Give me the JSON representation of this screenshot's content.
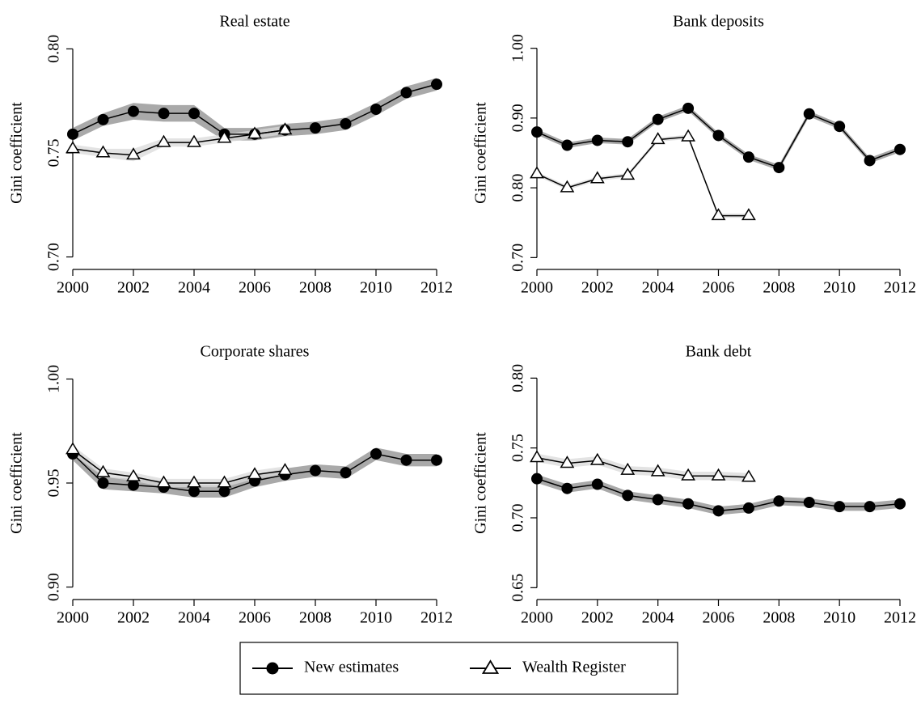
{
  "chart_data": [
    {
      "type": "line",
      "title": "Real estate",
      "ylabel": "Gini coefficient",
      "x": [
        2000,
        2001,
        2002,
        2003,
        2004,
        2005,
        2006,
        2007,
        2008,
        2009,
        2010,
        2011,
        2012
      ],
      "xlim": [
        2000,
        2012
      ],
      "xticks": [
        2000,
        2002,
        2004,
        2006,
        2008,
        2010,
        2012
      ],
      "ylim": [
        0.694,
        0.806
      ],
      "yticks": [
        {
          "value": 0.7,
          "label": "0.70"
        },
        {
          "value": 0.75,
          "label": "0.75"
        },
        {
          "value": 0.8,
          "label": "0.80"
        }
      ],
      "series": [
        {
          "name": "New estimates",
          "color": "#000000",
          "marker": "circle",
          "band_color": "#8c8c8c",
          "values": [
            0.759,
            0.766,
            0.77,
            0.769,
            0.769,
            0.759,
            0.759,
            0.761,
            0.762,
            0.764,
            0.771,
            0.779,
            0.783
          ],
          "lower": [
            0.756,
            0.763,
            0.766,
            0.765,
            0.765,
            0.756,
            0.756,
            0.758,
            0.759,
            0.761,
            0.768,
            0.776,
            0.78
          ],
          "upper": [
            0.762,
            0.769,
            0.774,
            0.773,
            0.773,
            0.762,
            0.762,
            0.764,
            0.765,
            0.767,
            0.774,
            0.782,
            0.786
          ]
        },
        {
          "name": "Wealth Register",
          "color": "#000000",
          "marker": "triangle",
          "band_color": "#d9d9d9",
          "values": [
            0.752,
            0.75,
            0.749,
            0.755,
            0.755,
            0.757,
            0.759,
            0.761,
            null,
            null,
            null,
            null,
            null
          ],
          "lower": [
            0.75,
            0.748,
            0.746,
            0.753,
            0.753,
            0.755,
            0.757,
            0.759,
            null,
            null,
            null,
            null,
            null
          ],
          "upper": [
            0.754,
            0.752,
            0.752,
            0.757,
            0.757,
            0.759,
            0.761,
            0.763,
            null,
            null,
            null,
            null,
            null
          ]
        }
      ]
    },
    {
      "type": "line",
      "title": "Bank deposits",
      "ylabel": "Gini coefficient",
      "x": [
        2000,
        2001,
        2002,
        2003,
        2004,
        2005,
        2006,
        2007,
        2008,
        2009,
        2010,
        2011,
        2012
      ],
      "xlim": [
        2000,
        2012
      ],
      "xticks": [
        2000,
        2002,
        2004,
        2006,
        2008,
        2010,
        2012
      ],
      "ylim": [
        0.683,
        1.017
      ],
      "yticks": [
        {
          "value": 0.7,
          "label": "0.70"
        },
        {
          "value": 0.8,
          "label": "0.80"
        },
        {
          "value": 0.9,
          "label": "0.90"
        },
        {
          "value": 1.0,
          "label": "1.00"
        }
      ],
      "series": [
        {
          "name": "New estimates",
          "color": "#000000",
          "marker": "circle",
          "band_color": "#8c8c8c",
          "values": [
            0.88,
            0.861,
            0.868,
            0.866,
            0.898,
            0.914,
            0.875,
            0.844,
            0.829,
            0.906,
            0.888,
            0.839,
            0.855
          ],
          "lower": [
            0.876,
            0.857,
            0.864,
            0.862,
            0.894,
            0.91,
            0.871,
            0.84,
            0.825,
            0.902,
            0.884,
            0.835,
            0.851
          ],
          "upper": [
            0.884,
            0.865,
            0.872,
            0.87,
            0.902,
            0.918,
            0.879,
            0.848,
            0.833,
            0.91,
            0.892,
            0.843,
            0.859
          ]
        },
        {
          "name": "Wealth Register",
          "color": "#000000",
          "marker": "triangle",
          "band_color": "#d9d9d9",
          "values": [
            0.82,
            0.8,
            0.813,
            0.818,
            0.869,
            0.873,
            0.76,
            0.76,
            null,
            null,
            null,
            null,
            null
          ],
          "lower": [
            0.817,
            0.797,
            0.81,
            0.815,
            0.866,
            0.87,
            0.757,
            0.757,
            null,
            null,
            null,
            null,
            null
          ],
          "upper": [
            0.823,
            0.803,
            0.816,
            0.821,
            0.872,
            0.876,
            0.763,
            0.763,
            null,
            null,
            null,
            null,
            null
          ]
        }
      ]
    },
    {
      "type": "line",
      "title": "Corporate shares",
      "ylabel": "Gini coefficient",
      "x": [
        2000,
        2001,
        2002,
        2003,
        2004,
        2005,
        2006,
        2007,
        2008,
        2009,
        2010,
        2011,
        2012
      ],
      "xlim": [
        2000,
        2012
      ],
      "xticks": [
        2000,
        2002,
        2004,
        2006,
        2008,
        2010,
        2012
      ],
      "ylim": [
        0.894,
        1.006
      ],
      "yticks": [
        {
          "value": 0.9,
          "label": "0.90"
        },
        {
          "value": 0.95,
          "label": "0.95"
        },
        {
          "value": 1.0,
          "label": "1.00"
        }
      ],
      "series": [
        {
          "name": "New estimates",
          "color": "#000000",
          "marker": "circle",
          "band_color": "#8c8c8c",
          "values": [
            0.964,
            0.95,
            0.949,
            0.948,
            0.946,
            0.946,
            0.951,
            0.954,
            0.956,
            0.955,
            0.964,
            0.961,
            0.961
          ],
          "lower": [
            0.961,
            0.947,
            0.946,
            0.945,
            0.943,
            0.943,
            0.948,
            0.951,
            0.953,
            0.952,
            0.961,
            0.958,
            0.958
          ],
          "upper": [
            0.967,
            0.953,
            0.952,
            0.951,
            0.949,
            0.949,
            0.954,
            0.957,
            0.959,
            0.958,
            0.967,
            0.964,
            0.964
          ]
        },
        {
          "name": "Wealth Register",
          "color": "#000000",
          "marker": "triangle",
          "band_color": "#d9d9d9",
          "values": [
            0.966,
            0.955,
            0.953,
            0.95,
            0.95,
            0.95,
            0.954,
            0.956,
            null,
            null,
            null,
            null,
            null
          ],
          "lower": [
            0.964,
            0.953,
            0.951,
            0.948,
            0.948,
            0.948,
            0.952,
            0.954,
            null,
            null,
            null,
            null,
            null
          ],
          "upper": [
            0.968,
            0.957,
            0.955,
            0.952,
            0.952,
            0.952,
            0.956,
            0.958,
            null,
            null,
            null,
            null,
            null
          ]
        }
      ]
    },
    {
      "type": "line",
      "title": "Bank debt",
      "ylabel": "Gini coefficient",
      "x": [
        2000,
        2001,
        2002,
        2003,
        2004,
        2005,
        2006,
        2007,
        2008,
        2009,
        2010,
        2011,
        2012
      ],
      "xlim": [
        2000,
        2012
      ],
      "xticks": [
        2000,
        2002,
        2004,
        2006,
        2008,
        2010,
        2012
      ],
      "ylim": [
        0.6415,
        0.8083
      ],
      "yticks": [
        {
          "value": 0.65,
          "label": "0.65"
        },
        {
          "value": 0.7,
          "label": "0.70"
        },
        {
          "value": 0.75,
          "label": "0.75"
        },
        {
          "value": 0.8,
          "label": "0.80"
        }
      ],
      "series": [
        {
          "name": "New estimates",
          "color": "#000000",
          "marker": "circle",
          "band_color": "#8c8c8c",
          "values": [
            0.728,
            0.721,
            0.724,
            0.716,
            0.713,
            0.71,
            0.705,
            0.707,
            0.712,
            0.711,
            0.708,
            0.708,
            0.71
          ],
          "lower": [
            0.725,
            0.718,
            0.721,
            0.713,
            0.71,
            0.707,
            0.702,
            0.704,
            0.709,
            0.708,
            0.705,
            0.705,
            0.707
          ],
          "upper": [
            0.731,
            0.724,
            0.727,
            0.719,
            0.716,
            0.713,
            0.708,
            0.71,
            0.715,
            0.714,
            0.711,
            0.711,
            0.713
          ]
        },
        {
          "name": "Wealth Register",
          "color": "#000000",
          "marker": "triangle",
          "band_color": "#d9d9d9",
          "values": [
            0.743,
            0.739,
            0.741,
            0.734,
            0.733,
            0.73,
            0.73,
            0.729,
            null,
            null,
            null,
            null,
            null
          ],
          "lower": [
            0.74,
            0.736,
            0.738,
            0.731,
            0.73,
            0.727,
            0.727,
            0.726,
            null,
            null,
            null,
            null,
            null
          ],
          "upper": [
            0.746,
            0.742,
            0.744,
            0.737,
            0.736,
            0.733,
            0.733,
            0.732,
            null,
            null,
            null,
            null,
            null
          ]
        }
      ]
    }
  ]
}
